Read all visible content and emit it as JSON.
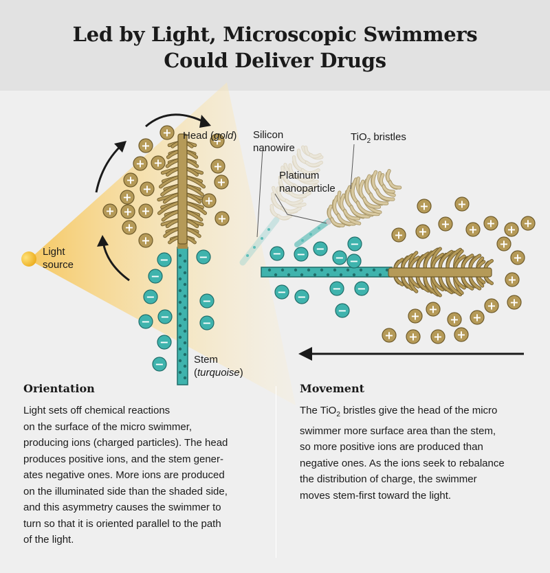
{
  "title": {
    "line1": "Led by Light, Microscopic Swimmers",
    "line2": "Could Deliver Drugs"
  },
  "labels": {
    "light_source": [
      "Light",
      "source"
    ],
    "head": {
      "text": "Head (",
      "italic": "gold",
      "close": ")"
    },
    "stem": {
      "line1": "Stem",
      "line2_open": "(",
      "line2_italic": "turquoise",
      "line2_close": ")"
    },
    "silicon_nanowire": [
      "Silicon",
      "nanowire"
    ],
    "platinum_nanoparticle": [
      "Platinum",
      "nanoparticle"
    ],
    "tio2_bristles": {
      "prefix": "TiO",
      "sub": "2",
      "suffix": " bristles"
    }
  },
  "ion_symbols": {
    "positive": "+",
    "negative": "−"
  },
  "orientation": {
    "heading": "Orientation",
    "lines": [
      "Light sets off chemical reactions",
      "on the surface of the micro swimmer,",
      "producing ions (charged particles). The head",
      "produces positive ions, and the stem gener-",
      "ates negative ones. More ions are produced",
      "on the illuminated side than the shaded side,",
      "and this asymmetry causes the swimmer to",
      "turn so that it is oriented parallel to the path",
      "of the light."
    ]
  },
  "movement": {
    "heading": "Movement",
    "line1": {
      "prefix": "The TiO",
      "sub": "2",
      "suffix": " bristles give the head of the micro"
    },
    "lines": [
      "swimmer more surface area than the stem,",
      "so more positive ions are produced than",
      "negative ones. As the ions seek to rebalance",
      "the distribution of charge, the swimmer",
      "moves stem-first toward the light."
    ]
  },
  "colors": {
    "gold": "#b59a58",
    "gold_dark": "#6e5a2a",
    "turquoise": "#3fb3ad",
    "turquoise_dark": "#1f6d69",
    "light": "#f3c232",
    "background": "#efefef",
    "header": "#e2e2e2"
  }
}
